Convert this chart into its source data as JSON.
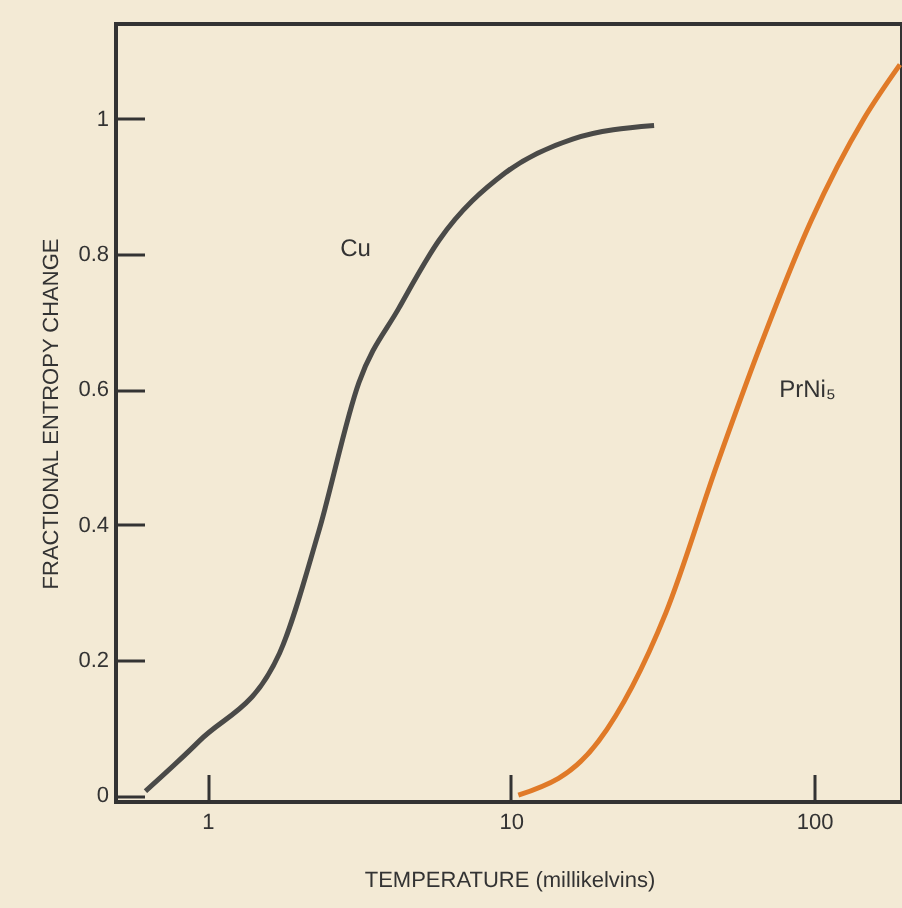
{
  "chart_data": {
    "type": "line",
    "xlabel": "TEMPERATURE (millikelvins)",
    "ylabel": "FRACTIONAL ENTROPY CHANGE",
    "log": "x",
    "xlim": [
      0.5,
      195
    ],
    "xticks": [
      1,
      10,
      100
    ],
    "ylim": [
      -0.01,
      1.14
    ],
    "yticks": [
      0,
      0.2,
      0.4,
      0.6,
      0.8,
      1
    ],
    "grid": false,
    "series": [
      {
        "name": "Cu",
        "color": "#4a4a48",
        "x": [
          0.625,
          0.94,
          1.73,
          2.33,
          3.16,
          4.28,
          5.8,
          9.6,
          16,
          29.7
        ],
        "values": [
          0.006,
          0.08,
          0.21,
          0.39,
          0.61,
          0.72,
          0.82,
          0.92,
          0.97,
          0.99
        ]
      },
      {
        "name": "PrNi₅",
        "color": "#e07a28",
        "x": [
          10.6,
          19.5,
          32.5,
          48,
          66,
          98,
          146,
          192
        ],
        "values": [
          0,
          0.08,
          0.27,
          0.49,
          0.66,
          0.85,
          1.0,
          1.08
        ]
      }
    ]
  }
}
